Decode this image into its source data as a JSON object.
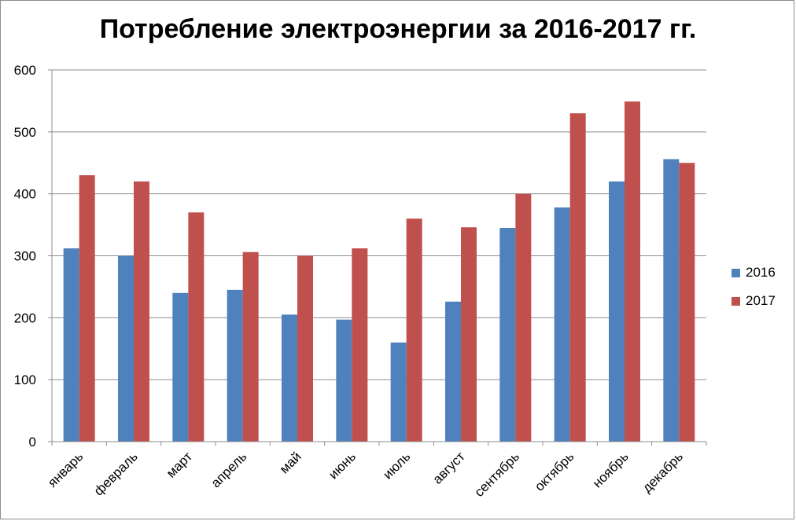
{
  "chart_data": {
    "type": "bar",
    "title": "Потребление электроэнергии за 2016-2017 гг.",
    "categories": [
      "январь",
      "февраль",
      "март",
      "апрель",
      "май",
      "июнь",
      "июль",
      "август",
      "сентябрь",
      "октябрь",
      "ноябрь",
      "декабрь"
    ],
    "series": [
      {
        "name": "2016",
        "color": "#4f81bd",
        "values": [
          312,
          300,
          240,
          245,
          205,
          197,
          160,
          226,
          345,
          378,
          420,
          456
        ]
      },
      {
        "name": "2017",
        "color": "#c0504d",
        "values": [
          430,
          420,
          370,
          306,
          300,
          312,
          360,
          346,
          400,
          530,
          549,
          450
        ]
      }
    ],
    "ylim": [
      0,
      600
    ],
    "yticks": [
      "0",
      "100",
      "200",
      "300",
      "400",
      "500",
      "600"
    ],
    "grid": true,
    "legend": "right"
  }
}
